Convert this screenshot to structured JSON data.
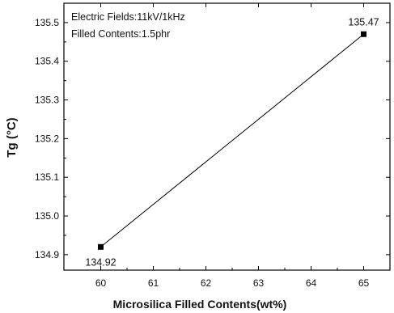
{
  "chart_data": {
    "type": "line",
    "title": "",
    "xlabel": "Microsilica Filled Contents(wt%)",
    "ylabel": "Tg (°C)",
    "xlim": [
      59.3,
      65.5
    ],
    "ylim": [
      134.86,
      135.55
    ],
    "x_ticks": [
      60,
      61,
      62,
      63,
      64,
      65
    ],
    "y_ticks": [
      134.9,
      135.0,
      135.1,
      135.2,
      135.3,
      135.4,
      135.5
    ],
    "x_tick_labels": [
      "60",
      "61",
      "62",
      "63",
      "64",
      "65"
    ],
    "y_tick_labels": [
      "134.9",
      "135.0",
      "135.1",
      "135.2",
      "135.3",
      "135.4",
      "135.5"
    ],
    "annotations": [
      "Electric Fields:11kV/1kHz",
      "Filled Contents:1.5phr"
    ],
    "grid": false,
    "series": [
      {
        "x": [
          60,
          65
        ],
        "y": [
          134.92,
          135.47
        ],
        "labels": [
          "134.92",
          "135.47"
        ],
        "marker": "square",
        "color": "#000000"
      }
    ]
  }
}
